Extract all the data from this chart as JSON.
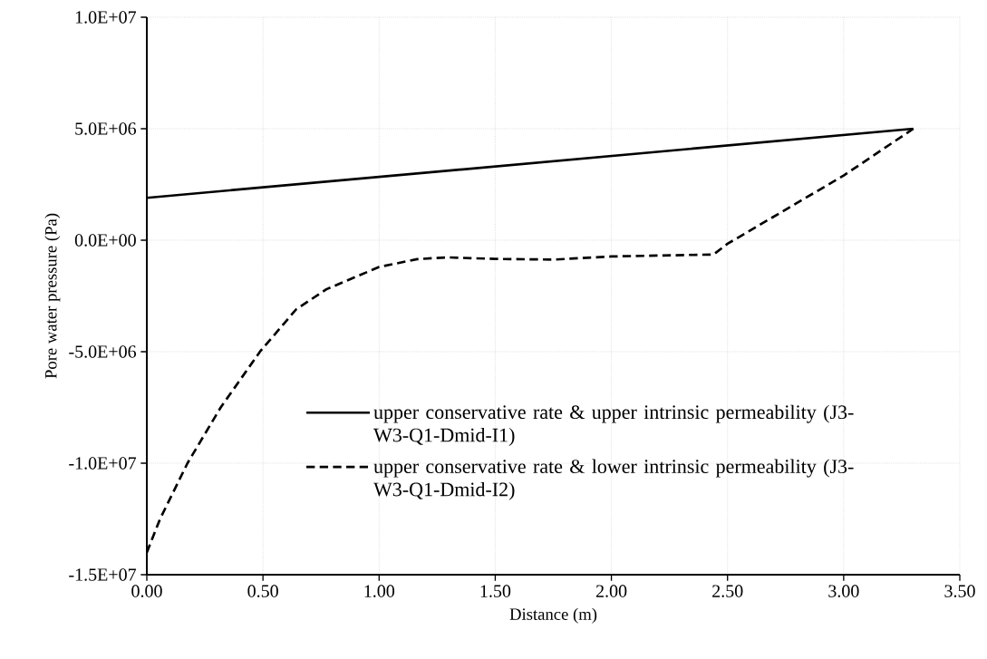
{
  "chart_data": {
    "type": "line",
    "xlabel": "Distance (m)",
    "ylabel": "Pore water pressure (Pa)",
    "xlim": [
      0,
      3.5
    ],
    "xticks": [
      {
        "value": 0,
        "label": "0.00"
      },
      {
        "value": 0.5,
        "label": "0.50"
      },
      {
        "value": 1,
        "label": "1.00"
      },
      {
        "value": 1.5,
        "label": "1.50"
      },
      {
        "value": 2,
        "label": "2.00"
      },
      {
        "value": 2.5,
        "label": "2.50"
      },
      {
        "value": 3,
        "label": "3.00"
      },
      {
        "value": 3.5,
        "label": "3.50"
      }
    ],
    "ylim": [
      -15000000,
      10000000
    ],
    "yticks": [
      {
        "value": -15000000,
        "label": "-1.5E+07"
      },
      {
        "value": -10000000,
        "label": "-1.0E+07"
      },
      {
        "value": -5000000,
        "label": "-5.0E+06"
      },
      {
        "value": 0,
        "label": "0.0E+00"
      },
      {
        "value": 5000000,
        "label": "5.0E+06"
      },
      {
        "value": 10000000,
        "label": "1.0E+07"
      }
    ],
    "grid": true,
    "legend": "bottom right",
    "series": [
      {
        "name": "upper conservative rate & upper intrinsic permeability (J3-W3-Q1-Dmid-I1)",
        "color": "#000000",
        "line_style": "solid",
        "x": [
          0,
          3.3
        ],
        "values": [
          1900000,
          5000000
        ]
      },
      {
        "name": "upper conservative rate & lower intrinsic permeability (J3-W3-Q1-Dmid-I2)",
        "color": "#000000",
        "line_style": "dashed",
        "x": [
          0,
          0.057,
          0.175,
          0.318,
          0.487,
          0.643,
          0.773,
          1.0,
          1.164,
          1.294,
          1.5,
          1.75,
          2.0,
          2.44,
          2.5,
          3.0,
          3.3
        ],
        "values": [
          -14000000,
          -12500000,
          -10000000,
          -7500000,
          -5000000,
          -3100000,
          -2200000,
          -1200000,
          -850000,
          -770000,
          -840000,
          -870000,
          -730000,
          -640000,
          -160000,
          2900000,
          5000000
        ]
      }
    ]
  }
}
